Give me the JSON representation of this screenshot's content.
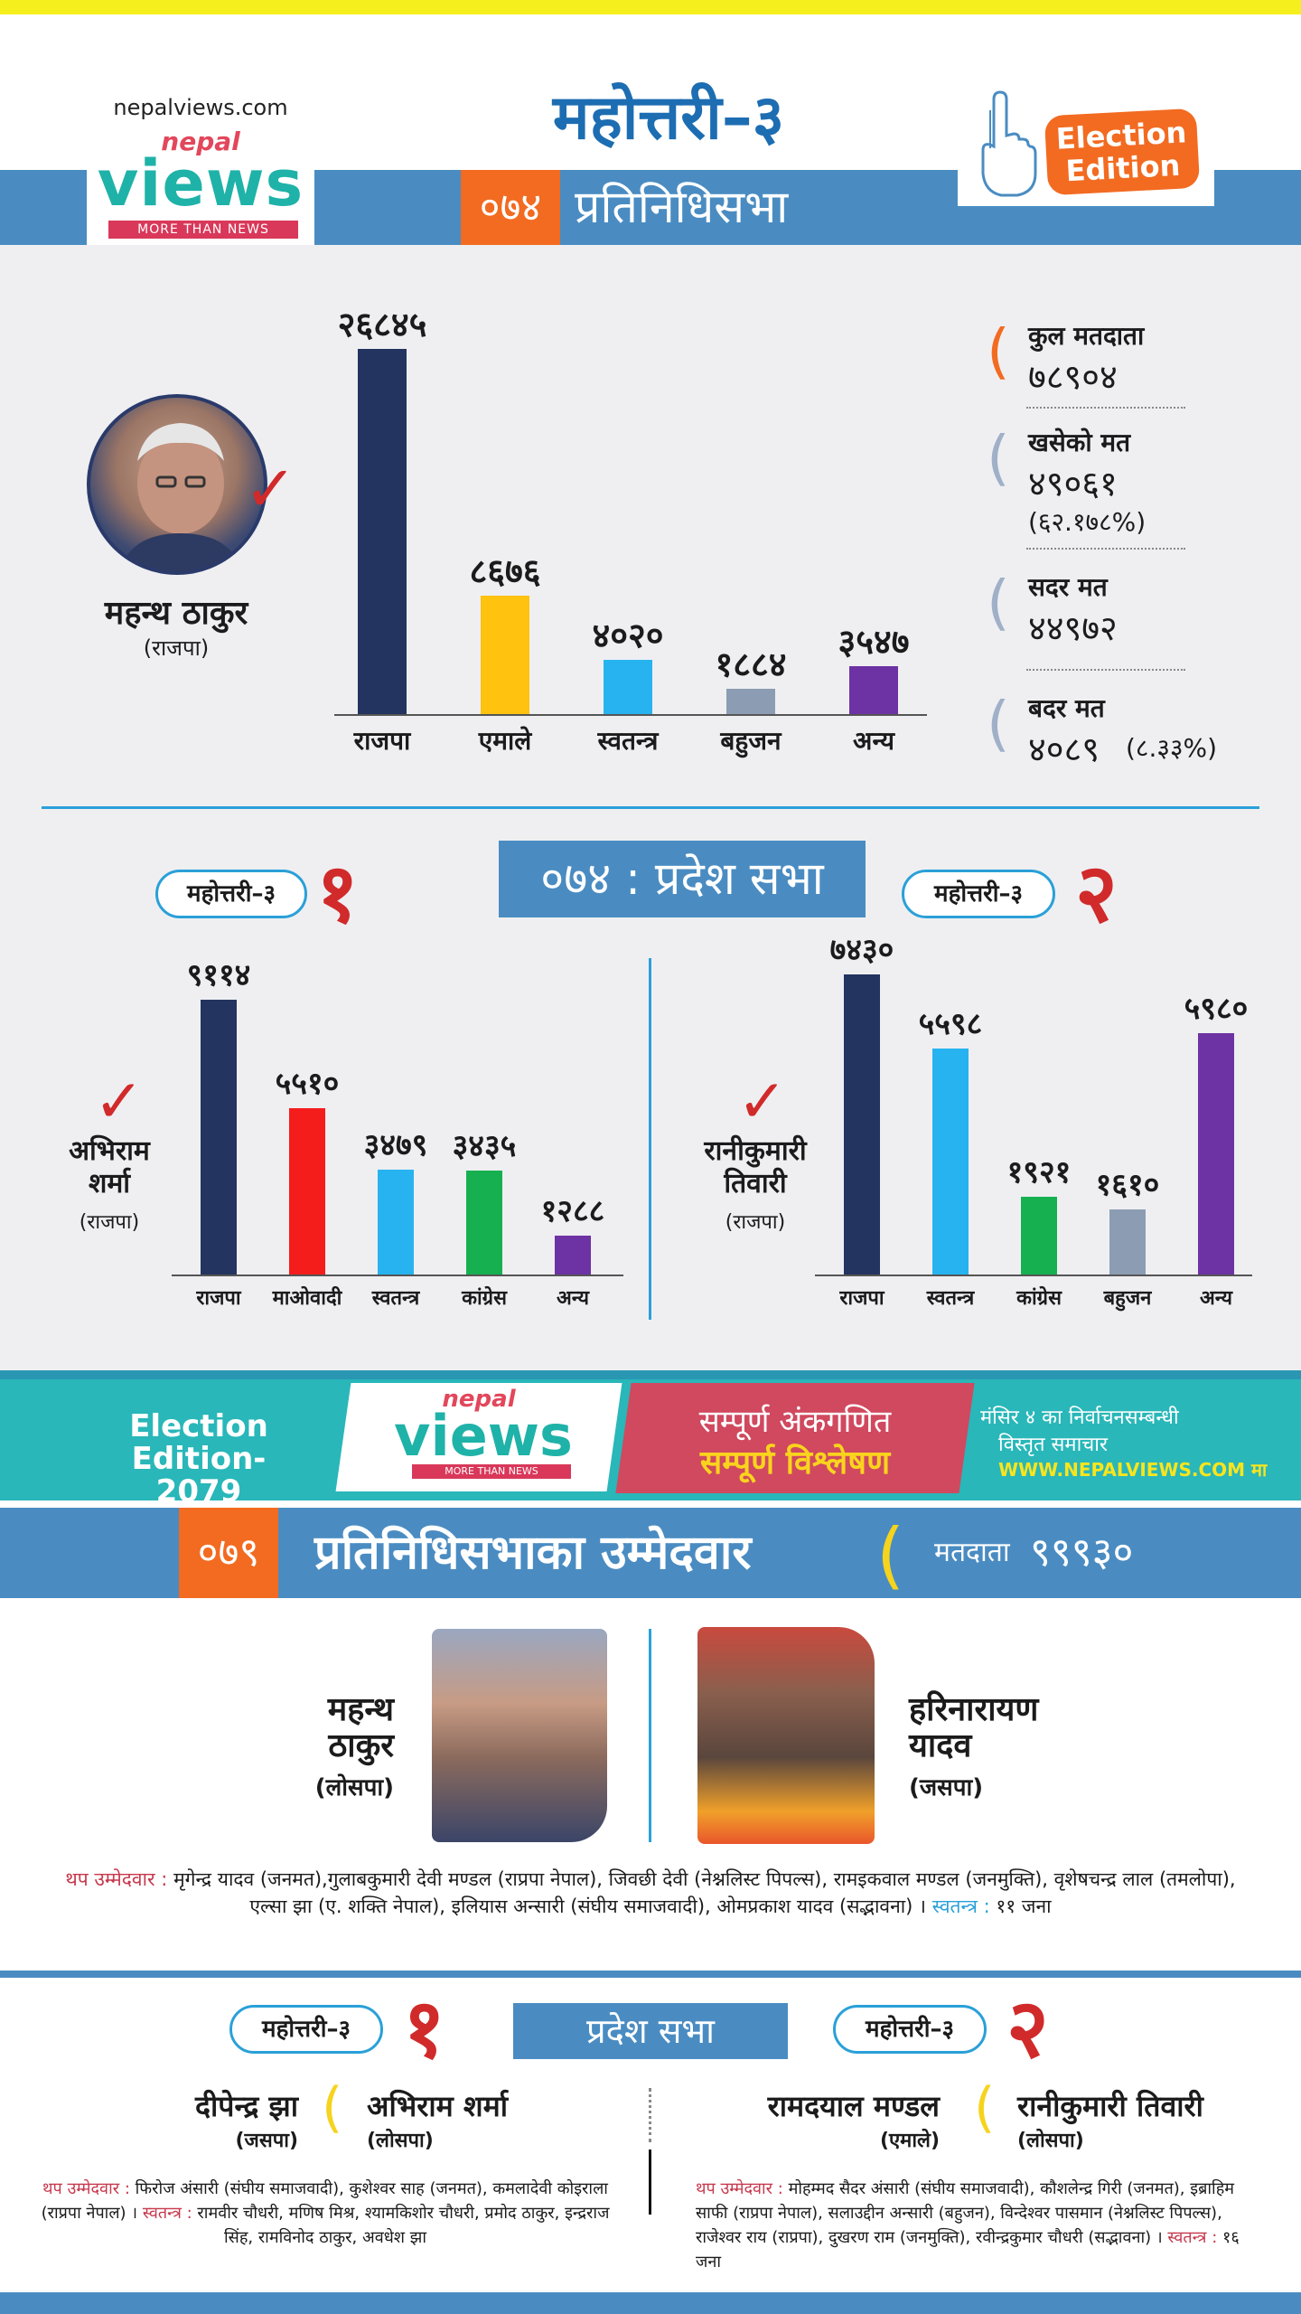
{
  "header": {
    "site_url": "nepalviews.com",
    "logo_small": "nepal",
    "logo_main": "views",
    "logo_tag": "MORE THAN NEWS",
    "title": "महोत्तरी–३",
    "year": "०७४",
    "house": "प्रतिनिधिसभा",
    "badge_line1": "Election",
    "badge_line2": "Edition"
  },
  "hor074": {
    "winner_name": "महन्थ ठाकुर",
    "winner_party": "(राजपा)",
    "chart_data": {
      "type": "bar",
      "categories": [
        "राजपा",
        "एमाले",
        "स्वतन्त्र",
        "बहुजन",
        "अन्य"
      ],
      "values": [
        26845,
        8676,
        4020,
        1884,
        3547
      ],
      "value_labels": [
        "२६८४५",
        "८६७६",
        "४०२०",
        "१८८४",
        "३५४७"
      ],
      "colors": [
        "#22345f",
        "#fec20f",
        "#27b3ef",
        "#8c9db3",
        "#6d32a3"
      ],
      "ylim": [
        0,
        26845
      ]
    },
    "stats": [
      {
        "label": "कुल मतदाता",
        "value": "७८९०४",
        "sub": "",
        "color": "#f26b21"
      },
      {
        "label": "खसेको मत",
        "value": "४९०६१",
        "sub": "(६२.१७८%)",
        "color": "#9fb0c8"
      },
      {
        "label": "सदर मत",
        "value": "४४९७२",
        "sub": "",
        "color": "#9fb0c8"
      },
      {
        "label": "बदर मत",
        "value": "४०८९",
        "sub": "(८.३३%)",
        "color": "#9fb0c8"
      }
    ]
  },
  "pradesh074": {
    "title": "०७४ : प्रदेश सभा",
    "area1": {
      "pill": "महोत्तरी–३",
      "number": "१",
      "winner_line1": "अभिराम",
      "winner_line2": "शर्मा",
      "winner_party": "(राजपा)",
      "chart_data": {
        "type": "bar",
        "categories": [
          "राजपा",
          "माओवादी",
          "स्वतन्त्र",
          "कांग्रेस",
          "अन्य"
        ],
        "values": [
          9114,
          5510,
          3479,
          3435,
          1288
        ],
        "value_labels": [
          "९११४",
          "५५१०",
          "३४७९",
          "३४३५",
          "१२८८"
        ],
        "colors": [
          "#22345f",
          "#f51c1c",
          "#27b3ef",
          "#16b050",
          "#6d32a3"
        ],
        "ylim": [
          0,
          9114
        ]
      }
    },
    "area2": {
      "pill": "महोत्तरी–३",
      "number": "२",
      "winner_line1": "रानीकुमारी",
      "winner_line2": "तिवारी",
      "winner_party": "(राजपा)",
      "chart_data": {
        "type": "bar",
        "categories": [
          "राजपा",
          "स्वतन्त्र",
          "कांग्रेस",
          "बहुजन",
          "अन्य"
        ],
        "values": [
          7430,
          5598,
          1921,
          1610,
          5980
        ],
        "value_labels": [
          "७४३०",
          "५५९८",
          "१९२१",
          "१६१०",
          "५९८०"
        ],
        "colors": [
          "#22345f",
          "#27b3ef",
          "#16b050",
          "#8c9db3",
          "#6d32a3"
        ],
        "ylim": [
          0,
          7430
        ]
      }
    }
  },
  "banner": {
    "left_line1": "Election",
    "left_line2": "Edition- 2079",
    "logo_small": "nepal",
    "logo_main": "views",
    "logo_tag": "MORE THAN NEWS",
    "mid_line1": "सम्पूर्ण अंकगणित",
    "mid_line2": "सम्पूर्ण विश्लेषण",
    "right_line1": "मंसिर ४ का निर्वाचनसम्बन्धी",
    "right_line2": "विस्तृत समाचार",
    "right_line3": "WWW.NEPALVIEWS.COM मा"
  },
  "hor079": {
    "year": "०७९",
    "title": "प्रतिनिधिसभाका उम्मेदवार",
    "voters_label": "मतदाता",
    "voters_value": "९९९३०",
    "cand_a_line1": "महन्थ",
    "cand_a_line2": "ठाकुर",
    "cand_a_party": "(लोसपा)",
    "cand_b_line1": "हरिनारायण",
    "cand_b_line2": "यादव",
    "cand_b_party": "(जसपा)",
    "others_label": "थप उम्मेदवार :",
    "others_text": "मृगेन्द्र यादव (जनमत),गुलाबकुमारी देवी मण्डल (राप्रपा नेपाल), जिवछी देवी (नेश्नलिस्ट पिपल्स), रामइकवाल मण्डल (जनमुक्ति), वृशेषचन्द्र लाल (तमलोपा), एल्सा झा (ए. शक्ति नेपाल), इलियास अन्सारी (संघीय समाजवादी), ओमप्रकाश यादव (सद्भावना) ।",
    "indep_label": "स्वतन्त्र :",
    "indep_value": "११ जना"
  },
  "pradesh079": {
    "title": "प्रदेश सभा",
    "area1": {
      "pill": "महोत्तरी–३",
      "number": "१",
      "cand_a": "दीपेन्द्र झा",
      "cand_a_party": "(जसपा)",
      "cand_b": "अभिराम शर्मा",
      "cand_b_party": "(लोसपा)",
      "others_label": "थप उम्मेदवार :",
      "others_text": "फिरोज अंसारी (संघीय समाजवादी), कुशेश्वर साह (जनमत), कमलादेवी कोइराला (राप्रपा नेपाल) ।",
      "indep_label": "स्वतन्त्र :",
      "indep_text": "रामवीर चौधरी, मणिष मिश्र, श्यामकिशोर चौधरी, प्रमोद ठाकुर, इन्द्रराज सिंह, रामविनोद ठाकुर, अवधेश झा"
    },
    "area2": {
      "pill": "महोत्तरी–३",
      "number": "२",
      "cand_a": "रामदयाल मण्डल",
      "cand_a_party": "(एमाले)",
      "cand_b": "रानीकुमारी तिवारी",
      "cand_b_party": "(लोसपा)",
      "others_label": "थप उम्मेदवार :",
      "others_text": "मोहम्मद सैदर अंसारी (संघीय समाजवादी), कौशलेन्द्र गिरी (जनमत), इब्राहिम साफी (राप्रपा नेपाल), सलाउद्दीन अन्सारी (बहुजन), विन्देश्वर पासमान (नेश्नलिस्ट पिपल्स), राजेश्वर राय (राप्रपा), दुखरण राम (जनमुक्ति), रवीन्द्रकुमार चौधरी (सद्भावना) ।",
      "indep_label": "स्वतन्त्र :",
      "indep_value": "१६ जना"
    }
  }
}
